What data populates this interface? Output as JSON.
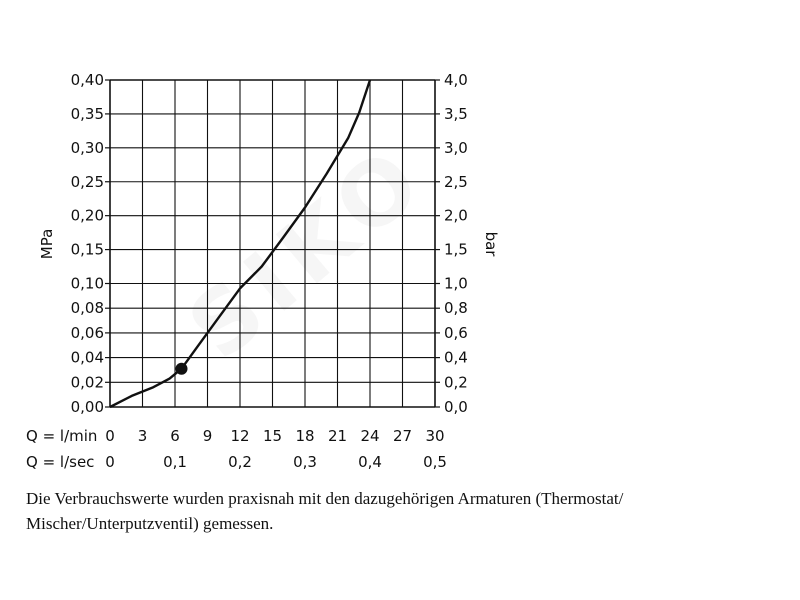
{
  "chart_data": {
    "type": "line",
    "left_axis": {
      "label": "MPa",
      "ticks": [
        "0,00",
        "0,02",
        "0,04",
        "0,06",
        "0,08",
        "0,10",
        "0,15",
        "0,20",
        "0,25",
        "0,30",
        "0,35",
        "0,40"
      ]
    },
    "right_axis": {
      "label": "bar",
      "ticks": [
        "0,0",
        "0,2",
        "0,4",
        "0,6",
        "0,8",
        "1,0",
        "1,5",
        "2,0",
        "2,5",
        "3,0",
        "3,5",
        "4,0"
      ]
    },
    "x_axis_lmin": {
      "label": "Q = l/min",
      "ticks": [
        "0",
        "3",
        "6",
        "9",
        "12",
        "15",
        "18",
        "21",
        "24",
        "27",
        "30"
      ]
    },
    "x_axis_lsec": {
      "label": "Q = l/sec",
      "ticks": [
        "0",
        "0,1",
        "0,2",
        "0,3",
        "0,4",
        "0,5"
      ]
    },
    "xlim": [
      0,
      30
    ],
    "ylim": [
      0,
      0.4
    ],
    "grid": true,
    "series": [
      {
        "x": [
          0,
          2,
          4,
          5.5,
          6.6,
          8,
          10,
          12,
          14,
          16,
          18,
          20,
          22,
          23,
          24
        ],
        "y": [
          0,
          0.009,
          0.016,
          0.023,
          0.031,
          0.048,
          0.072,
          0.096,
          0.125,
          0.168,
          0.212,
          0.262,
          0.315,
          0.352,
          0.4
        ]
      }
    ],
    "marker": {
      "x": 6.6,
      "y": 0.031
    }
  },
  "caption": "Die Verbrauchswerte wurden praxisnah mit den dazugehörigen Armaturen (Thermostat/ Mischer/Unterputzventil) gemessen.",
  "watermark": "SIKO"
}
